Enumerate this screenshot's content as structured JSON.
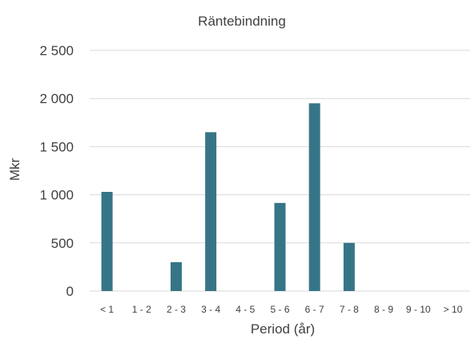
{
  "chart_data": {
    "type": "bar",
    "title": "Räntebindning",
    "xlabel": "Period (år)",
    "ylabel": "Mkr",
    "categories": [
      "< 1",
      "1 - 2",
      "2 - 3",
      "3 - 4",
      "4 - 5",
      "5 - 6",
      "6 - 7",
      "7 - 8",
      "8 - 9",
      "9 - 10",
      "> 10"
    ],
    "values": [
      1030,
      0,
      300,
      1650,
      0,
      915,
      1950,
      500,
      0,
      0,
      0
    ],
    "ylim": [
      0,
      2500
    ],
    "yticks": [
      0,
      500,
      1000,
      1500,
      2000,
      2500
    ],
    "ytick_labels": [
      "0",
      "500",
      "1 000",
      "1 500",
      "2 000",
      "2 500"
    ],
    "grid": true,
    "legend": "none",
    "bar_color": "#367587"
  }
}
